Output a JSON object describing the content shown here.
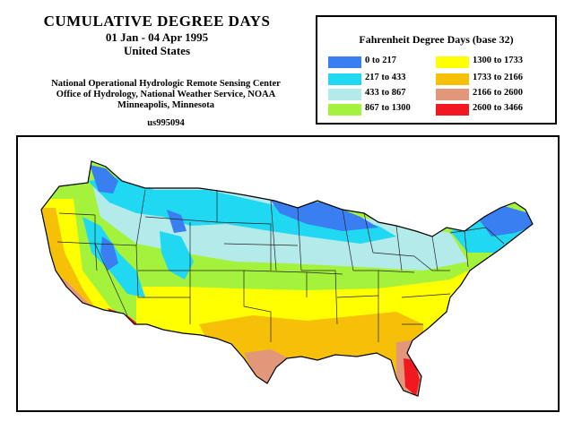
{
  "title": {
    "main": "CUMULATIVE DEGREE DAYS",
    "dates": "01 Jan - 04 Apr 1995",
    "region": "United States"
  },
  "agency": {
    "line1": "National Operational Hydrologic Remote Sensing Center",
    "line2": "Office of Hydrology, National Weather Service, NOAA",
    "line3": "Minneapolis, Minnesota"
  },
  "product_code": "us995094",
  "legend": {
    "title": "Fahrenheit Degree Days (base 32)",
    "items": [
      {
        "label": "0  to  217",
        "color": "#3a7ff2"
      },
      {
        "label": "217  to  433",
        "color": "#20d8f2"
      },
      {
        "label": "433  to  867",
        "color": "#b3eaea"
      },
      {
        "label": "867  to  1300",
        "color": "#a4f23b"
      },
      {
        "label": "1300  to  1733",
        "color": "#ffff00"
      },
      {
        "label": "1733  to  2166",
        "color": "#f6bf08"
      },
      {
        "label": "2166  to  2600",
        "color": "#e2967a"
      },
      {
        "label": "2600  to  3466",
        "color": "#f21820"
      }
    ]
  }
}
